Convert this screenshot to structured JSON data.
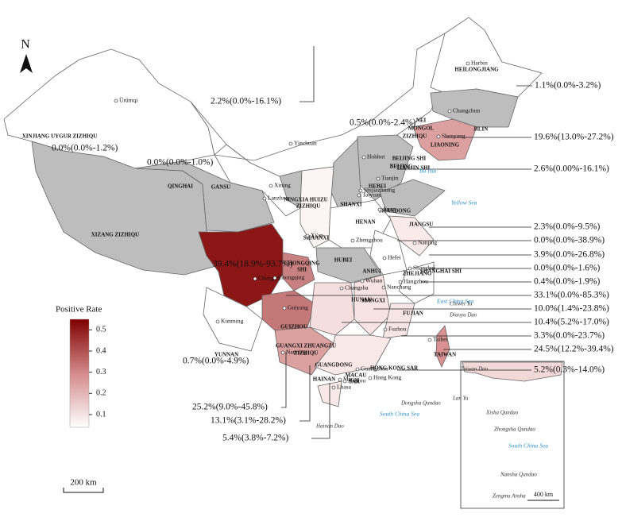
{
  "compass": "N",
  "scale_bar": "200 km",
  "inset_scale": "400 km",
  "legend": {
    "title": "Positive Rate",
    "range": [
      0.04,
      0.55
    ],
    "ticks": [
      0.5,
      0.4,
      0.3,
      0.2,
      0.1
    ]
  },
  "annotations": [
    "1.1%(0.0%-3.2%)",
    "2.2%(0.0%-16.1%)",
    "0.5%(0.0%-2.4%)",
    "19.6%(13.0%-27.2%)",
    "0.0%(0.0%-1.2%)",
    "0.0%(0.0%-1.0%)",
    "2.6%(0.00%-16.1%)",
    "2.3%(0.0%-9.5%)",
    "0.0%(0.0%-38.9%)",
    "39.4%(18.9%-93.7%)",
    "3.9%(0.0%-26.8%)",
    "0.0%(0.0%-1.6%)",
    "0.4%(0.0%-1.9%)",
    "33.1%(0.0%-85.3%)",
    "10.0%(1.4%-23.8%)",
    "10.4%(5.2%-17.0%)",
    "3.3%(0.0%-23.7%)",
    "24.5%(12.2%-39.4%)",
    "0.7%(0.0%-4.9%)",
    "5.2%(0.3%-14.0%)",
    "25.2%(9.0%-45.8%)",
    "13.1%(3.1%-28.2%)",
    "5.4%(3.8%-7.2%)"
  ],
  "provinces": [
    "HEILONGJIANG",
    "JILIN",
    "LIAONING",
    "NEI",
    "MONGOL",
    "ZIZHIQU",
    "XINJIANG  UYGUR  ZIZHIQU",
    "GANSU",
    "NINGXIA HUIZU",
    "ZIZHIQU",
    "QINGHAI",
    "XIZANG  ZIZHIQU",
    "BEIJING SHI",
    "BEIJING",
    "TIANJIN SHI",
    "HEBEI",
    "SHANXI",
    "SHANDONG",
    "SHAANXI",
    "HENAN",
    "JIANGSU",
    "ANHUI",
    "SHANGHAI SHI",
    "HUBEI",
    "CHONGQING",
    "SHI",
    "ZHEJIANG",
    "HUNAN",
    "JIANGXI",
    "FUJIAN",
    "GUIZHOU",
    "YUNNAN",
    "GUANGXI ZHUANGZU",
    "ZIZHIQU",
    "GUANGDONG",
    "HONG KONG SAR",
    "MACAU",
    "SAR",
    "HAINAN",
    "TAIWAN"
  ],
  "cities": [
    "Harbin",
    "Changchun",
    "Shenyang",
    "Ürümqi",
    "Hohhot",
    "Tianjin",
    "Taiyuan",
    "Shijiazhuang",
    "Jinan",
    "Yinchuan",
    "Xining",
    "Lanzhou",
    "Xi'an",
    "Zhengzhou",
    "Nanjing",
    "Hefei",
    "Shanghai",
    "Hangzhou",
    "Wuhan",
    "Chengdu",
    "Chongqing",
    "Changsha",
    "Nanchang",
    "Fuzhou",
    "Taibei",
    "Guiyang",
    "Kunming",
    "Nanning",
    "Guangzhou",
    "Hong Kong",
    "Macau",
    "Haikou",
    "Lhasa"
  ],
  "seas": [
    "Bo Hai",
    "Yellow Sea",
    "East China Sea",
    "South China Sea",
    "South China Sea"
  ],
  "islands": [
    "Taiwan Dao",
    "Hainan Dao",
    "Diaoyu Dao",
    "Chiwei Yu",
    "Dongsha Qundao",
    "Lan Yu",
    "Xisha Qundao",
    "Zhongsha Qundao",
    "Nansha Qundao",
    "Zengmu Ansha"
  ]
}
